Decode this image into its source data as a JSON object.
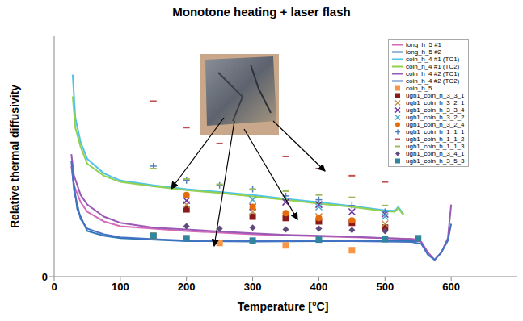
{
  "chart_data": {
    "type": "line",
    "title": "Monotone heating + laser flash",
    "x_label": "Temperature [°C]",
    "y_label": "Relative thermal diffusivity",
    "xlim": [
      0,
      700
    ],
    "xticks": [
      0,
      100,
      200,
      300,
      400,
      500,
      600
    ],
    "ylim": [
      0,
      5
    ],
    "yticks": [
      0
    ],
    "grid": false,
    "legend": "upper right",
    "series": [
      {
        "name": "long_h_5 #1",
        "color": "#d46ab8",
        "type": "line",
        "x": [
          26,
          30,
          40,
          50,
          75,
          100,
          200,
          300,
          400,
          500,
          550
        ],
        "values": [
          2.3,
          1.9,
          1.55,
          1.35,
          1.15,
          1.05,
          0.95,
          0.88,
          0.84,
          0.8,
          0.78
        ]
      },
      {
        "name": "long_h_5 #2",
        "color": "#2e75b6",
        "type": "line",
        "x": [
          28,
          35,
          50,
          75,
          100,
          200,
          300,
          400,
          500,
          550
        ],
        "values": [
          2.1,
          1.4,
          0.95,
          0.85,
          0.8,
          0.74,
          0.73,
          0.74,
          0.74,
          0.74
        ]
      },
      {
        "name": "coin_h_4 #1 (TC1)",
        "color": "#4fc3e8",
        "type": "line",
        "x": [
          28,
          32,
          40,
          50,
          75,
          100,
          150,
          200,
          250,
          300,
          350,
          400,
          450,
          500,
          515,
          520,
          528
        ],
        "values": [
          4.2,
          3.3,
          2.8,
          2.45,
          2.15,
          2.0,
          1.9,
          1.82,
          1.76,
          1.7,
          1.62,
          1.55,
          1.47,
          1.38,
          1.37,
          1.45,
          1.3
        ]
      },
      {
        "name": "coin_h_4 #1 (TC2)",
        "color": "#92d050",
        "type": "line",
        "x": [
          28,
          32,
          40,
          50,
          75,
          100,
          150,
          200,
          250,
          300,
          350,
          400,
          450,
          500,
          515,
          520,
          528
        ],
        "values": [
          3.75,
          3.1,
          2.7,
          2.35,
          2.1,
          1.97,
          1.88,
          1.8,
          1.74,
          1.67,
          1.6,
          1.52,
          1.45,
          1.36,
          1.35,
          1.42,
          1.28
        ]
      },
      {
        "name": "coin_h_4 #2 (TC1)",
        "color": "#9b59b6",
        "type": "line",
        "x": [
          26,
          30,
          40,
          50,
          75,
          100,
          150,
          200,
          250,
          300,
          350,
          400,
          450,
          500,
          540,
          555,
          565,
          575,
          585,
          595,
          600
        ],
        "values": [
          2.55,
          2.1,
          1.7,
          1.5,
          1.25,
          1.12,
          1.02,
          0.98,
          0.94,
          0.9,
          0.87,
          0.85,
          0.83,
          0.8,
          0.78,
          0.72,
          0.5,
          0.35,
          0.5,
          0.8,
          1.5
        ]
      },
      {
        "name": "coin_h_4 #2 (TC2)",
        "color": "#4472c4",
        "type": "line",
        "x": [
          26,
          30,
          40,
          50,
          75,
          100,
          150,
          200,
          250,
          300,
          350,
          400,
          450,
          500,
          540,
          555,
          565,
          575,
          585,
          595,
          600
        ],
        "values": [
          2.4,
          1.8,
          1.2,
          1.0,
          0.88,
          0.82,
          0.78,
          0.75,
          0.74,
          0.74,
          0.74,
          0.75,
          0.74,
          0.73,
          0.72,
          0.68,
          0.45,
          0.35,
          0.5,
          0.75,
          1.1
        ]
      },
      {
        "name": "coin_h_5",
        "color": "#f79646",
        "type": "scatter",
        "marker": "square",
        "x": [
          150,
          250,
          350,
          450
        ],
        "values": [
          0.85,
          0.7,
          0.65,
          0.55
        ]
      },
      {
        "name": "ugb1_coin_h_3_3_1",
        "color": "#8b1a1a",
        "type": "scatter",
        "marker": "square",
        "x": [
          200,
          300,
          350,
          400,
          450,
          500
        ],
        "values": [
          1.4,
          1.25,
          1.22,
          1.15,
          1.12,
          1.02
        ]
      },
      {
        "name": "ugb1_coin_h_3_2_1",
        "color": "#c09050",
        "type": "scatter",
        "marker": "x",
        "x": [
          200,
          300,
          400,
          500
        ],
        "values": [
          1.5,
          1.35,
          1.25,
          1.1
        ]
      },
      {
        "name": "ugb1_coin_h_3_3_4",
        "color": "#7030a0",
        "type": "scatter",
        "marker": "x",
        "x": [
          200,
          300,
          350,
          400,
          450,
          500
        ],
        "values": [
          1.58,
          1.45,
          1.55,
          1.5,
          1.35,
          1.3
        ]
      },
      {
        "name": "ugb1_coin_h_3_2_2",
        "color": "#4bacc6",
        "type": "scatter",
        "marker": "x",
        "x": [
          300,
          400,
          500
        ],
        "values": [
          1.6,
          1.45,
          1.25
        ]
      },
      {
        "name": "ugb1_coin_h_3_2_4",
        "color": "#e46c0a",
        "type": "scatter",
        "marker": "circle",
        "x": [
          200,
          300,
          350,
          400,
          450
        ],
        "values": [
          1.7,
          1.45,
          1.32,
          1.22,
          1.17
        ]
      },
      {
        "name": "ugb1_coin_h_1_1_1",
        "color": "#4f81bd",
        "type": "scatter",
        "marker": "plus",
        "x": [
          150,
          200,
          250,
          300,
          350,
          400,
          450,
          500
        ],
        "values": [
          2.3,
          2.0,
          1.9,
          1.82,
          1.68,
          1.6,
          1.48,
          1.35
        ]
      },
      {
        "name": "ugb1_coin_h_1_1_2",
        "color": "#c0504d",
        "type": "scatter",
        "marker": "dash",
        "x": [
          150,
          200,
          250,
          350,
          400,
          450,
          500
        ],
        "values": [
          3.65,
          3.1,
          2.77,
          2.5,
          2.25,
          2.1,
          1.97
        ]
      },
      {
        "name": "ugb1_coin_h_1_1_3",
        "color": "#9bbb59",
        "type": "scatter",
        "marker": "dash",
        "x": [
          150,
          200,
          250,
          300,
          350,
          400,
          450,
          500
        ],
        "values": [
          2.25,
          2.03,
          1.92,
          1.82,
          1.78,
          1.7,
          1.65,
          1.48
        ]
      },
      {
        "name": "ugb1_coin_h_3_4_1",
        "color": "#604a7b",
        "type": "scatter",
        "marker": "diamond",
        "x": [
          200,
          250,
          300,
          350,
          400,
          450,
          500
        ],
        "values": [
          1.05,
          1.0,
          1.02,
          0.98,
          1.0,
          0.97,
          0.95
        ]
      },
      {
        "name": "ugb1_coin_h_3_5_3",
        "color": "#31859c",
        "type": "scatter",
        "marker": "square",
        "x": [
          150,
          200,
          300,
          400,
          500,
          550
        ],
        "values": [
          0.85,
          0.8,
          0.75,
          0.77,
          0.78,
          0.8
        ]
      }
    ]
  }
}
